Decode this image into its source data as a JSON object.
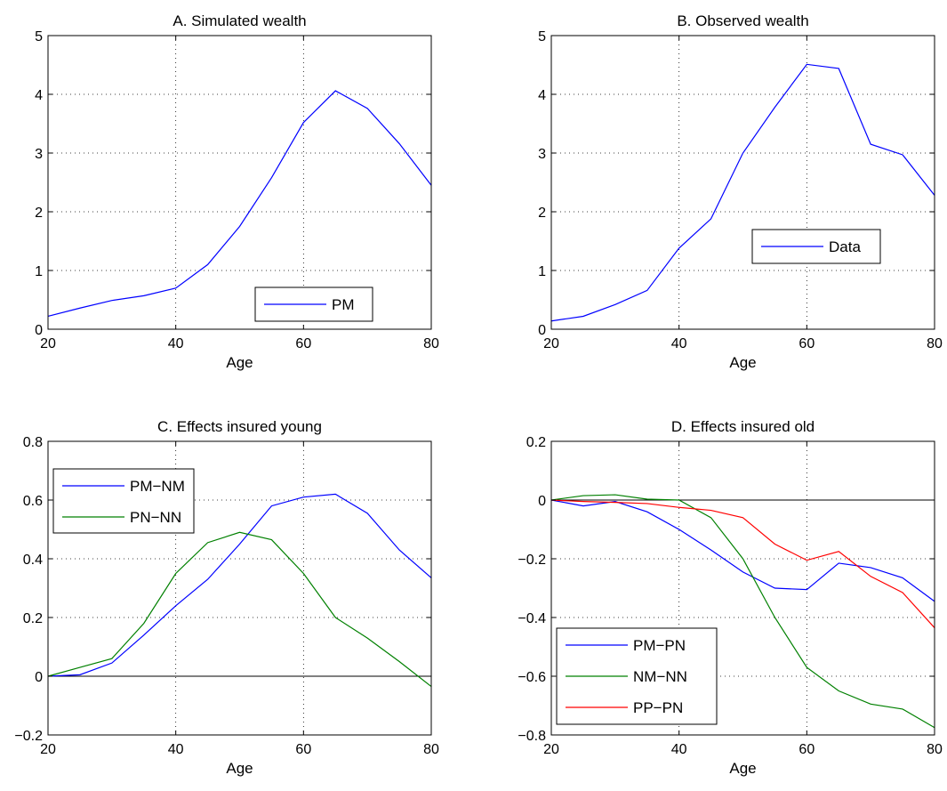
{
  "chart_data": [
    {
      "type": "line",
      "title": "A. Simulated wealth",
      "xlabel": "Age",
      "ylabel": "",
      "xlim": [
        20,
        80
      ],
      "ylim": [
        0,
        5
      ],
      "xticks": [
        20,
        40,
        60,
        80
      ],
      "yticks": [
        0,
        1,
        2,
        3,
        4,
        5
      ],
      "grid": true,
      "zero_line": false,
      "legend_position": "bottom-right",
      "x": [
        20,
        25,
        30,
        35,
        40,
        45,
        50,
        55,
        60,
        65,
        70,
        75,
        80
      ],
      "series": [
        {
          "name": "PM",
          "color": "#0000ff",
          "values": [
            0.22,
            0.36,
            0.49,
            0.57,
            0.7,
            1.1,
            1.75,
            2.58,
            3.52,
            4.06,
            3.76,
            3.16,
            2.45
          ]
        }
      ]
    },
    {
      "type": "line",
      "title": "B. Observed wealth",
      "xlabel": "Age",
      "ylabel": "",
      "xlim": [
        20,
        80
      ],
      "ylim": [
        0,
        5
      ],
      "xticks": [
        20,
        40,
        60,
        80
      ],
      "yticks": [
        0,
        1,
        2,
        3,
        4,
        5
      ],
      "grid": true,
      "zero_line": false,
      "legend_position": "middle-right",
      "x": [
        20,
        25,
        30,
        35,
        40,
        45,
        50,
        55,
        60,
        65,
        70,
        75,
        80
      ],
      "series": [
        {
          "name": "Data",
          "color": "#0000ff",
          "values": [
            0.14,
            0.22,
            0.42,
            0.66,
            1.38,
            1.88,
            3.0,
            3.78,
            4.51,
            4.44,
            3.15,
            2.97,
            2.28
          ]
        }
      ]
    },
    {
      "type": "line",
      "title": "C. Effects insured young",
      "xlabel": "Age",
      "ylabel": "",
      "xlim": [
        20,
        80
      ],
      "ylim": [
        -0.2,
        0.8
      ],
      "xticks": [
        20,
        40,
        60,
        80
      ],
      "yticks": [
        -0.2,
        0,
        0.2,
        0.4,
        0.6,
        0.8
      ],
      "grid": true,
      "zero_line": true,
      "legend_position": "top-left",
      "x": [
        20,
        25,
        30,
        35,
        40,
        45,
        50,
        55,
        60,
        65,
        70,
        75,
        80
      ],
      "series": [
        {
          "name": "PM−NM",
          "color": "#0000ff",
          "values": [
            0.0,
            0.005,
            0.045,
            0.14,
            0.24,
            0.33,
            0.45,
            0.58,
            0.61,
            0.62,
            0.555,
            0.43,
            0.335
          ]
        },
        {
          "name": "PN−NN",
          "color": "#008000",
          "values": [
            0.0,
            0.03,
            0.06,
            0.18,
            0.35,
            0.455,
            0.49,
            0.465,
            0.35,
            0.2,
            0.13,
            0.05,
            -0.035
          ]
        }
      ]
    },
    {
      "type": "line",
      "title": "D. Effects insured old",
      "xlabel": "Age",
      "ylabel": "",
      "xlim": [
        20,
        80
      ],
      "ylim": [
        -0.8,
        0.2
      ],
      "xticks": [
        20,
        40,
        60,
        80
      ],
      "yticks": [
        -0.8,
        -0.6,
        -0.4,
        -0.2,
        0,
        0.2
      ],
      "grid": true,
      "zero_line": true,
      "legend_position": "bottom-left",
      "x": [
        20,
        25,
        30,
        35,
        40,
        45,
        50,
        55,
        60,
        65,
        70,
        75,
        80
      ],
      "series": [
        {
          "name": "PM−PN",
          "color": "#0000ff",
          "values": [
            0.0,
            -0.02,
            -0.005,
            -0.04,
            -0.1,
            -0.17,
            -0.245,
            -0.3,
            -0.305,
            -0.215,
            -0.23,
            -0.265,
            -0.345
          ]
        },
        {
          "name": "NM−NN",
          "color": "#008000",
          "values": [
            0.0,
            0.015,
            0.018,
            0.003,
            0.0,
            -0.06,
            -0.2,
            -0.4,
            -0.57,
            -0.65,
            -0.695,
            -0.712,
            -0.775
          ]
        },
        {
          "name": "PP−PN",
          "color": "#ff0000",
          "values": [
            0.0,
            -0.005,
            -0.008,
            -0.012,
            -0.025,
            -0.035,
            -0.06,
            -0.15,
            -0.205,
            -0.175,
            -0.26,
            -0.315,
            -0.435
          ]
        }
      ]
    }
  ]
}
